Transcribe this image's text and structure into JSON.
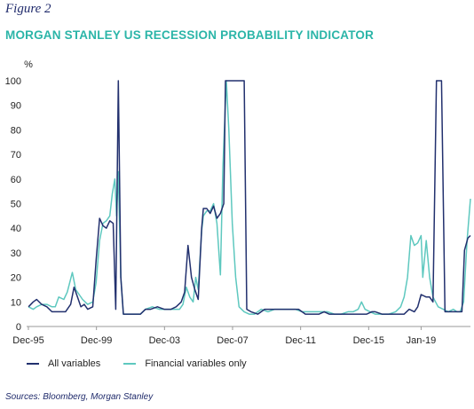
{
  "figure_label": "Figure 2",
  "chart_data": {
    "type": "line",
    "title": "MORGAN STANLEY US RECESSION PROBABILITY INDICATOR",
    "ylabel": "%",
    "ylim": [
      0,
      100
    ],
    "yticks": [
      0,
      10,
      20,
      30,
      40,
      50,
      60,
      70,
      80,
      90,
      100
    ],
    "xlim": [
      1995.917,
      2021.9
    ],
    "xticks": [
      {
        "label": "Dec-95",
        "x": 1995.917
      },
      {
        "label": "Dec-99",
        "x": 1999.917
      },
      {
        "label": "Dec-03",
        "x": 2003.917
      },
      {
        "label": "Dec-07",
        "x": 2007.917
      },
      {
        "label": "Dec-11",
        "x": 2011.917
      },
      {
        "label": "Dec-15",
        "x": 2015.917
      },
      {
        "label": "Jan-19",
        "x": 2019.0
      }
    ],
    "grid": false,
    "legend_position": "bottom-left",
    "series": [
      {
        "name": "All variables",
        "color": "#22306e",
        "points": [
          [
            1995.92,
            8
          ],
          [
            1996.2,
            10
          ],
          [
            1996.4,
            11
          ],
          [
            1996.7,
            9
          ],
          [
            1997.0,
            8
          ],
          [
            1997.3,
            6
          ],
          [
            1997.7,
            6
          ],
          [
            1998.1,
            6
          ],
          [
            1998.4,
            9
          ],
          [
            1998.6,
            16
          ],
          [
            1998.8,
            12
          ],
          [
            1999.0,
            8
          ],
          [
            1999.2,
            9
          ],
          [
            1999.4,
            7
          ],
          [
            1999.7,
            8
          ],
          [
            1999.9,
            27
          ],
          [
            2000.1,
            44
          ],
          [
            2000.3,
            41
          ],
          [
            2000.5,
            40
          ],
          [
            2000.7,
            43
          ],
          [
            2000.9,
            42
          ],
          [
            2001.05,
            7
          ],
          [
            2001.2,
            100
          ],
          [
            2001.35,
            20
          ],
          [
            2001.5,
            5
          ],
          [
            2001.8,
            5
          ],
          [
            2002.2,
            5
          ],
          [
            2002.5,
            5
          ],
          [
            2002.8,
            7
          ],
          [
            2003.1,
            7
          ],
          [
            2003.5,
            8
          ],
          [
            2003.9,
            7
          ],
          [
            2004.3,
            7
          ],
          [
            2004.6,
            8
          ],
          [
            2004.9,
            10
          ],
          [
            2005.1,
            14
          ],
          [
            2005.3,
            33
          ],
          [
            2005.5,
            20
          ],
          [
            2005.7,
            15
          ],
          [
            2005.9,
            11
          ],
          [
            2006.1,
            40
          ],
          [
            2006.2,
            48
          ],
          [
            2006.4,
            48
          ],
          [
            2006.6,
            46
          ],
          [
            2006.8,
            49
          ],
          [
            2007.0,
            44
          ],
          [
            2007.2,
            46
          ],
          [
            2007.4,
            50
          ],
          [
            2007.5,
            100
          ],
          [
            2008.1,
            100
          ],
          [
            2008.6,
            100
          ],
          [
            2008.75,
            7
          ],
          [
            2009.0,
            6
          ],
          [
            2009.4,
            5
          ],
          [
            2009.8,
            7
          ],
          [
            2010.2,
            7
          ],
          [
            2010.6,
            7
          ],
          [
            2011.0,
            7
          ],
          [
            2011.4,
            7
          ],
          [
            2011.8,
            7
          ],
          [
            2012.2,
            5
          ],
          [
            2012.6,
            5
          ],
          [
            2013.0,
            5
          ],
          [
            2013.3,
            6
          ],
          [
            2013.6,
            5
          ],
          [
            2014.0,
            5
          ],
          [
            2014.5,
            5
          ],
          [
            2015.0,
            5
          ],
          [
            2015.5,
            5
          ],
          [
            2015.8,
            5
          ],
          [
            2016.1,
            6
          ],
          [
            2016.3,
            6
          ],
          [
            2016.7,
            5
          ],
          [
            2017.2,
            5
          ],
          [
            2017.6,
            5
          ],
          [
            2018.0,
            5
          ],
          [
            2018.3,
            7
          ],
          [
            2018.6,
            6
          ],
          [
            2018.8,
            8
          ],
          [
            2019.0,
            13
          ],
          [
            2019.3,
            12
          ],
          [
            2019.5,
            12
          ],
          [
            2019.7,
            10
          ],
          [
            2019.9,
            100
          ],
          [
            2020.2,
            100
          ],
          [
            2020.4,
            6
          ],
          [
            2020.7,
            6
          ],
          [
            2021.0,
            6
          ],
          [
            2021.2,
            6
          ],
          [
            2021.4,
            6
          ],
          [
            2021.55,
            31
          ],
          [
            2021.75,
            36
          ],
          [
            2021.9,
            37
          ]
        ]
      },
      {
        "name": "Financial variables only",
        "color": "#5ec8bf",
        "points": [
          [
            1995.92,
            8
          ],
          [
            1996.2,
            7
          ],
          [
            1996.4,
            8
          ],
          [
            1996.7,
            9
          ],
          [
            1997.0,
            9
          ],
          [
            1997.3,
            8
          ],
          [
            1997.5,
            8
          ],
          [
            1997.7,
            12
          ],
          [
            1998.0,
            11
          ],
          [
            1998.2,
            14
          ],
          [
            1998.5,
            22
          ],
          [
            1998.7,
            15
          ],
          [
            1998.9,
            13
          ],
          [
            1999.1,
            11
          ],
          [
            1999.4,
            9
          ],
          [
            1999.7,
            10
          ],
          [
            1999.9,
            18
          ],
          [
            2000.1,
            35
          ],
          [
            2000.3,
            42
          ],
          [
            2000.5,
            43
          ],
          [
            2000.7,
            45
          ],
          [
            2000.85,
            54
          ],
          [
            2001.0,
            60
          ],
          [
            2001.1,
            45
          ],
          [
            2001.2,
            63
          ],
          [
            2001.35,
            20
          ],
          [
            2001.5,
            5
          ],
          [
            2001.8,
            5
          ],
          [
            2002.2,
            5
          ],
          [
            2002.5,
            5
          ],
          [
            2002.8,
            7
          ],
          [
            2003.2,
            8
          ],
          [
            2003.6,
            7
          ],
          [
            2004.0,
            7
          ],
          [
            2004.4,
            7
          ],
          [
            2004.8,
            7
          ],
          [
            2005.0,
            9
          ],
          [
            2005.2,
            16
          ],
          [
            2005.4,
            12
          ],
          [
            2005.6,
            10
          ],
          [
            2005.75,
            20
          ],
          [
            2005.9,
            15
          ],
          [
            2006.1,
            39
          ],
          [
            2006.2,
            45
          ],
          [
            2006.4,
            47
          ],
          [
            2006.6,
            47
          ],
          [
            2006.8,
            50
          ],
          [
            2007.0,
            42
          ],
          [
            2007.2,
            21
          ],
          [
            2007.35,
            65
          ],
          [
            2007.55,
            100
          ],
          [
            2007.7,
            80
          ],
          [
            2007.9,
            42
          ],
          [
            2008.1,
            20
          ],
          [
            2008.3,
            8
          ],
          [
            2008.6,
            6
          ],
          [
            2008.9,
            5
          ],
          [
            2009.2,
            5
          ],
          [
            2009.6,
            7
          ],
          [
            2010.0,
            6
          ],
          [
            2010.4,
            7
          ],
          [
            2010.8,
            7
          ],
          [
            2011.2,
            7
          ],
          [
            2011.6,
            7
          ],
          [
            2012.0,
            6
          ],
          [
            2012.4,
            6
          ],
          [
            2012.8,
            6
          ],
          [
            2013.2,
            6
          ],
          [
            2013.5,
            6
          ],
          [
            2013.9,
            5
          ],
          [
            2014.3,
            5
          ],
          [
            2014.7,
            6
          ],
          [
            2015.0,
            6
          ],
          [
            2015.3,
            7
          ],
          [
            2015.5,
            10
          ],
          [
            2015.7,
            7
          ],
          [
            2016.0,
            6
          ],
          [
            2016.3,
            5
          ],
          [
            2016.7,
            5
          ],
          [
            2017.1,
            5
          ],
          [
            2017.5,
            6
          ],
          [
            2017.8,
            8
          ],
          [
            2018.0,
            12
          ],
          [
            2018.2,
            20
          ],
          [
            2018.4,
            37
          ],
          [
            2018.6,
            33
          ],
          [
            2018.8,
            34
          ],
          [
            2019.0,
            37
          ],
          [
            2019.1,
            20
          ],
          [
            2019.3,
            35
          ],
          [
            2019.5,
            20
          ],
          [
            2019.7,
            12
          ],
          [
            2020.0,
            8
          ],
          [
            2020.3,
            7
          ],
          [
            2020.6,
            6
          ],
          [
            2020.9,
            7
          ],
          [
            2021.1,
            6
          ],
          [
            2021.3,
            6
          ],
          [
            2021.5,
            10
          ],
          [
            2021.7,
            35
          ],
          [
            2021.9,
            52
          ]
        ]
      }
    ]
  },
  "source": "Sources: Bloomberg, Morgan Stanley"
}
